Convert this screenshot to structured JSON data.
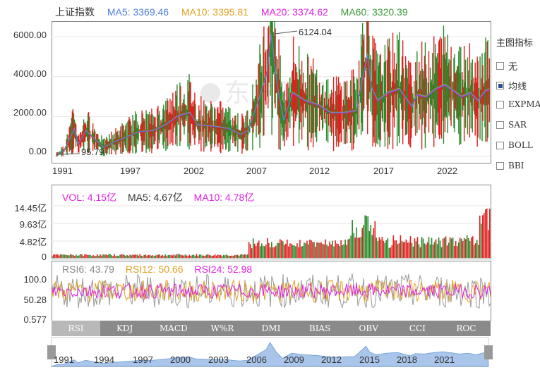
{
  "main_legend": {
    "title": "上证指数",
    "ma5": "MA5: 3369.46",
    "ma10": "MA10: 3395.81",
    "ma20": "MA20: 3374.62",
    "ma60": "MA60: 3320.39"
  },
  "colors": {
    "ma5": "#4f7fdc",
    "ma10": "#e0a020",
    "ma20": "#e020e0",
    "ma60": "#3a9a3a",
    "up": "#e02020",
    "down": "#2a8a2a",
    "nav_fill": "#a9c6ea",
    "nav_line": "#6b9bd6"
  },
  "main_yaxis": [
    "6000.00",
    "4000.00",
    "2000.00",
    "0.00"
  ],
  "main_xaxis": [
    "1991",
    "1997",
    "2002",
    "2007",
    "2012",
    "2017",
    "2022"
  ],
  "annotations": {
    "high": "6124.04",
    "low": "95.79"
  },
  "side_panel": {
    "title": "主图指标",
    "options": [
      {
        "label": "无",
        "checked": false
      },
      {
        "label": "均线",
        "checked": true
      },
      {
        "label": "EXPMA",
        "checked": false
      },
      {
        "label": "SAR",
        "checked": false
      },
      {
        "label": "BOLL",
        "checked": false
      },
      {
        "label": "BBI",
        "checked": false
      }
    ]
  },
  "vol_legend": {
    "vol": "VOL: 4.15亿",
    "ma5": "MA5: 4.67亿",
    "ma10": "MA10: 4.78亿"
  },
  "vol_yaxis": [
    "14.45亿",
    "9.63亿",
    "4.82亿",
    "0"
  ],
  "rsi_legend": {
    "rsi6": "RSI6: 43.79",
    "rsi12": "RSI12: 50.66",
    "rsi24": "RSI24: 52.98"
  },
  "rsi_yaxis": [
    "100.0",
    "50.28",
    "0.577"
  ],
  "tabs": [
    "RSI",
    "KDJ",
    "MACD",
    "W%R",
    "DMI",
    "BIAS",
    "OBV",
    "CCI",
    "ROC"
  ],
  "active_tab": "RSI",
  "navigator_years": [
    "1991",
    "1994",
    "1997",
    "2000",
    "2003",
    "2006",
    "2009",
    "2012",
    "2015",
    "2018",
    "2021"
  ],
  "chart_data": {
    "type": "line",
    "title": "上证指数",
    "x": [
      1990.9,
      1991.5,
      1992.3,
      1992.6,
      1993.2,
      1994.6,
      1995.5,
      1996.5,
      1997.4,
      1998.5,
      1999.5,
      2000.5,
      2001.4,
      2002.0,
      2003.5,
      2004.5,
      2005.4,
      2006.0,
      2006.8,
      2007.5,
      2007.8,
      2008.3,
      2008.8,
      2009.5,
      2010.5,
      2011.5,
      2012.5,
      2013.5,
      2014.5,
      2015.4,
      2015.7,
      2016.2,
      2017.0,
      2017.9,
      2018.9,
      2019.3,
      2020.0,
      2020.8,
      2021.5,
      2022.2,
      2022.8,
      2023.5,
      2024.1,
      2024.7,
      2025.0
    ],
    "values": [
      95.79,
      300,
      1400,
      600,
      1300,
      450,
      750,
      1000,
      1250,
      1300,
      1600,
      2050,
      2200,
      1600,
      1500,
      1400,
      1100,
      1300,
      2800,
      4200,
      6124.04,
      3500,
      1800,
      3200,
      2800,
      2600,
      2200,
      2200,
      2300,
      5100,
      3500,
      2800,
      3200,
      3400,
      2500,
      3100,
      3000,
      3400,
      3600,
      3300,
      3000,
      3200,
      2800,
      3300,
      3369
    ],
    "ylim": [
      0,
      6500
    ],
    "xlim": [
      1990.5,
      2025.1
    ],
    "series_names": [
      "MA5",
      "MA10",
      "MA20",
      "MA60"
    ]
  }
}
